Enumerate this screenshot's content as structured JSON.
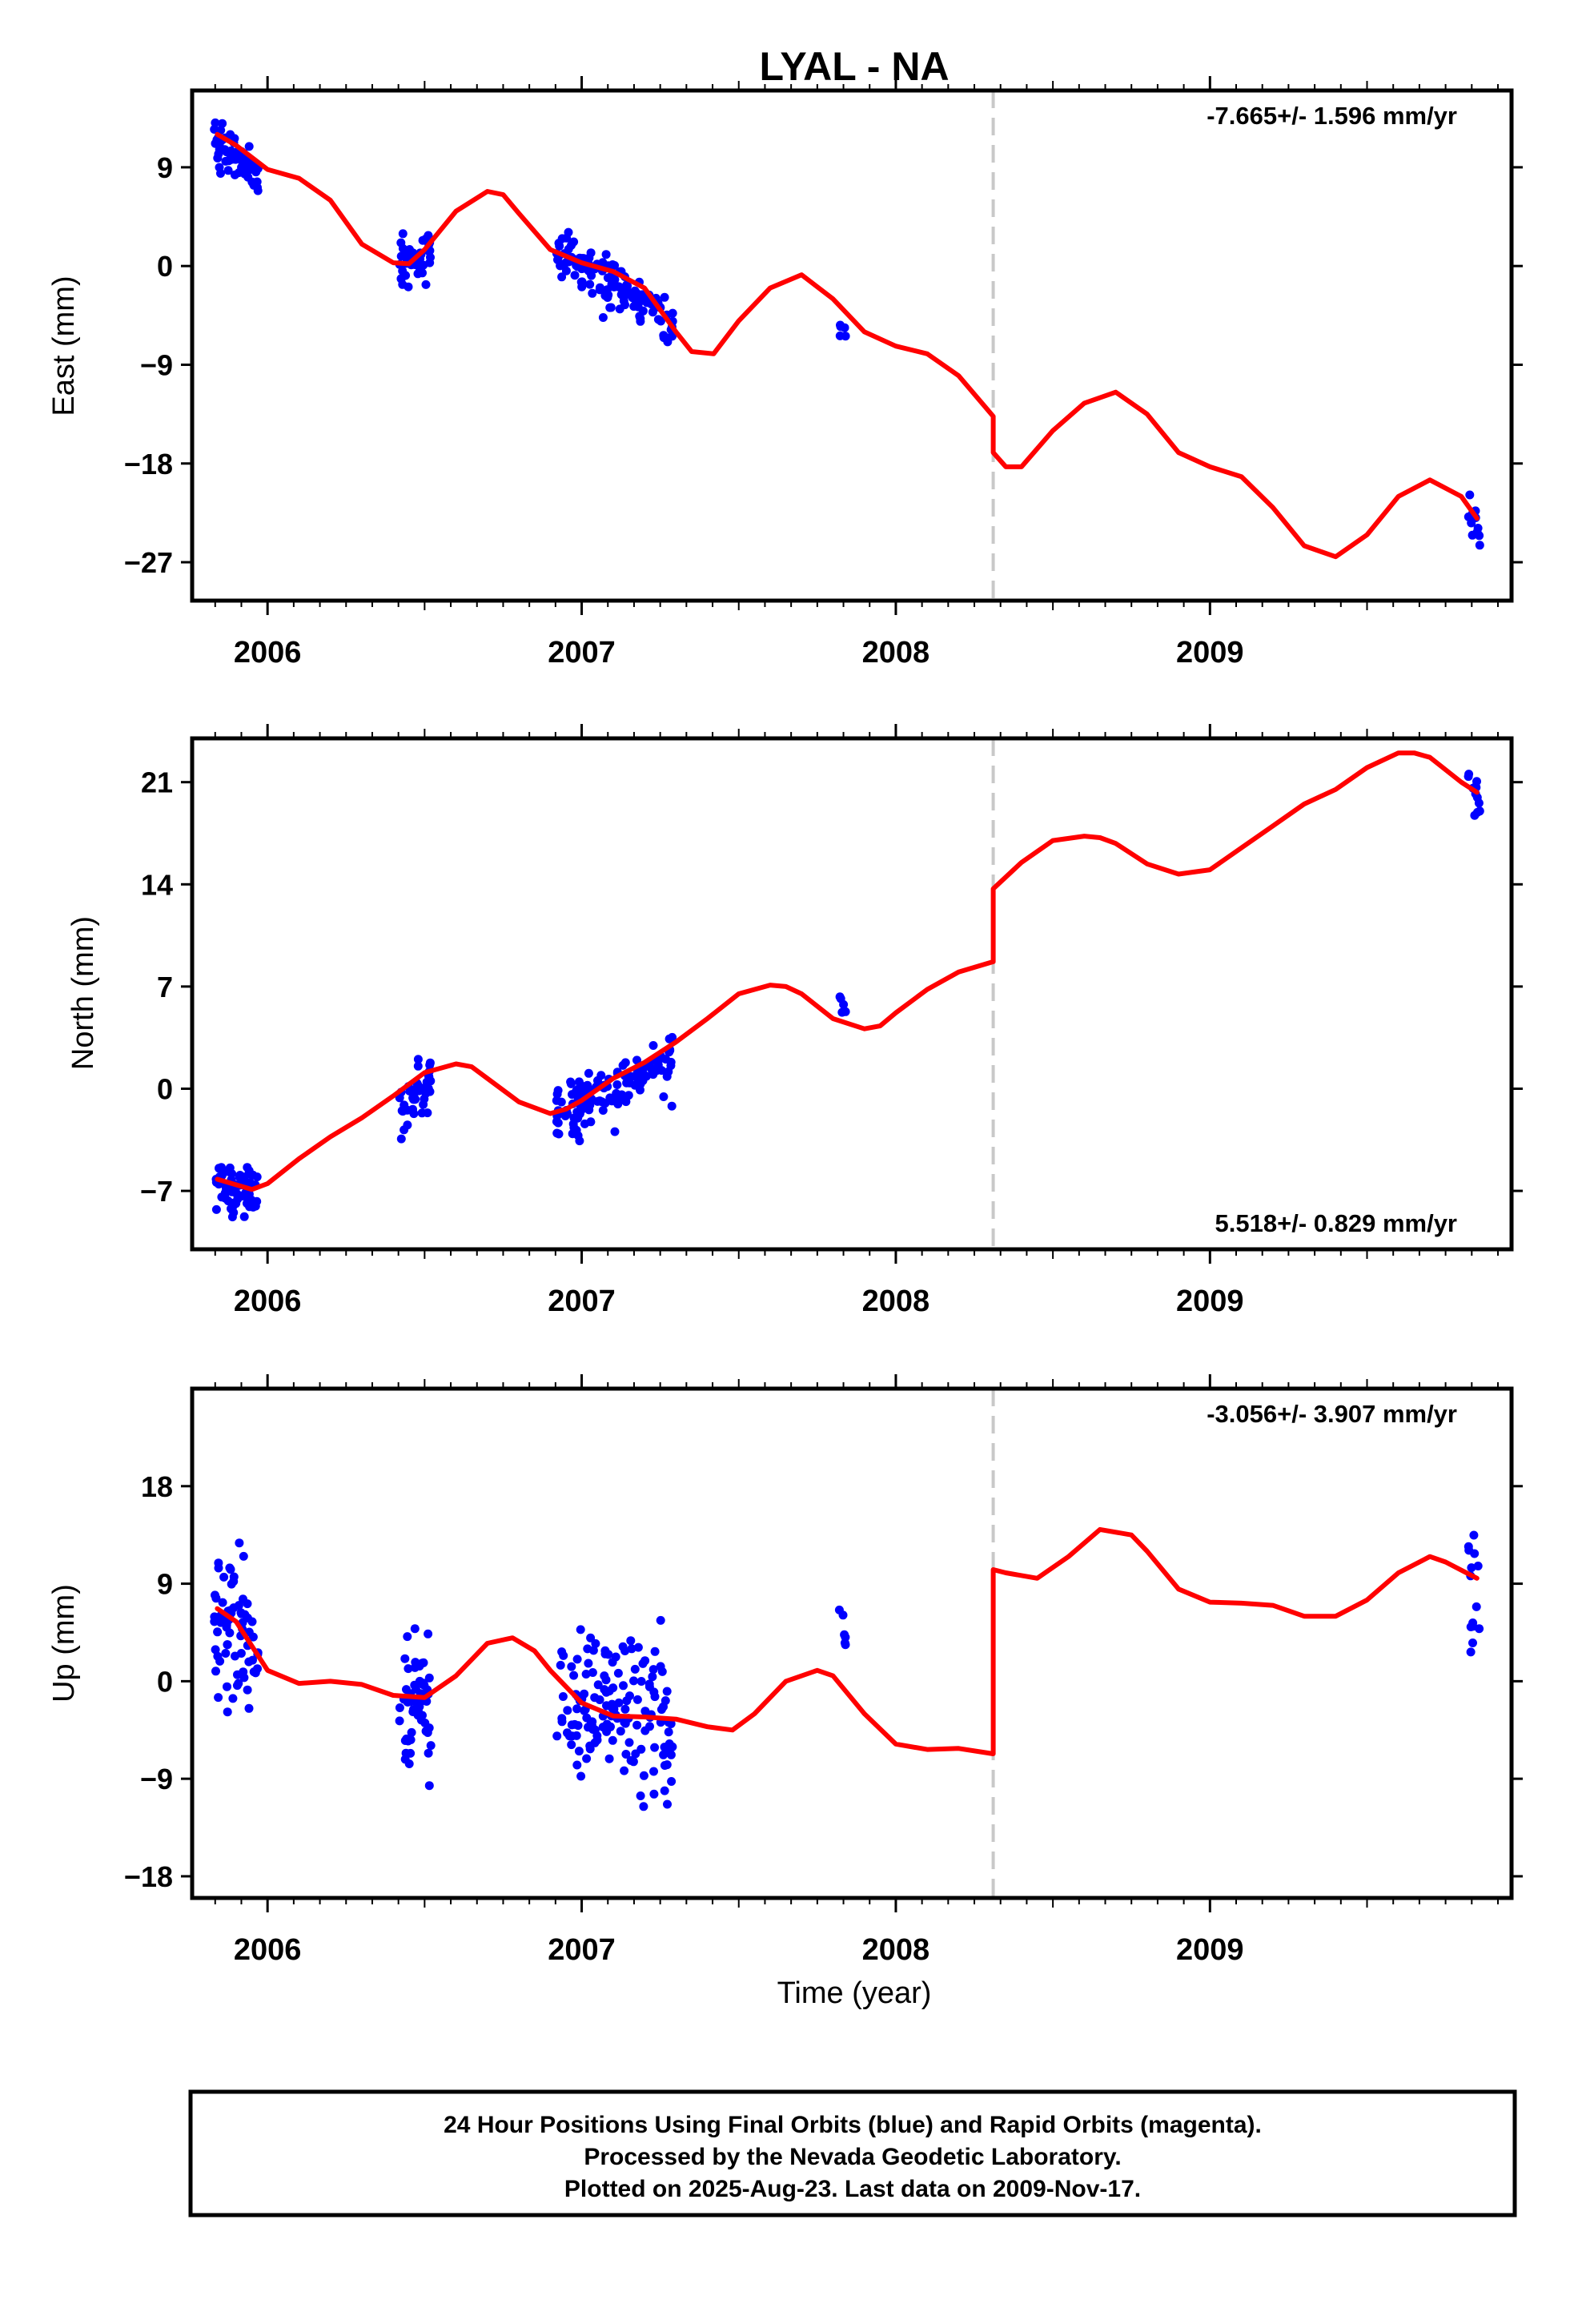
{
  "title": "LYAL - NA",
  "xlabel": "Time (year)",
  "footer": {
    "line1": "24 Hour Positions Using Final Orbits (blue) and Rapid Orbits (magenta).",
    "line2": "Processed by the Nevada Geodetic Laboratory.",
    "line3": "Plotted on 2025-Aug-23. Last data on 2009-Nov-17."
  },
  "colors": {
    "data": "#0000ff",
    "model": "#ff0000",
    "offset": "#c8c8c8",
    "frame": "#000000"
  },
  "chart_data": [
    {
      "type": "scatter",
      "ylabel": "East (mm)",
      "rate": "-7.665+/- 1.596 mm/yr",
      "rate_position": "top-right",
      "xlim": [
        2005.76,
        2009.96
      ],
      "ylim": [
        -30.5,
        16
      ],
      "yticks": [
        9,
        0,
        -9,
        -18,
        -27
      ],
      "xticks": [
        2006,
        2007,
        2008,
        2009
      ],
      "offset_line_x": 2008.31,
      "data_clusters": [
        {
          "x": [
            2005.83,
            2005.97
          ],
          "y": [
            11.5,
            8.5
          ],
          "spread": 1.6,
          "n": 70
        },
        {
          "x": [
            2006.42,
            2006.52
          ],
          "y": [
            0.0,
            1.5
          ],
          "spread": 1.3,
          "n": 45
        },
        {
          "x": [
            2006.92,
            2007.29
          ],
          "y": [
            1.5,
            -5.2
          ],
          "spread": 1.6,
          "n": 130
        },
        {
          "x": [
            2007.82,
            2007.84
          ],
          "y": [
            -5.5,
            -6.0
          ],
          "spread": 0.6,
          "n": 5
        },
        {
          "x": [
            2009.82,
            2009.86
          ],
          "y": [
            -21.5,
            -23.5
          ],
          "spread": 1.8,
          "n": 12
        }
      ],
      "model": {
        "x": [
          2005.84,
          2005.9,
          2006.0,
          2006.1,
          2006.2,
          2006.3,
          2006.4,
          2006.45,
          2006.5,
          2006.6,
          2006.7,
          2006.75,
          2006.8,
          2006.9,
          2007.0,
          2007.1,
          2007.2,
          2007.3,
          2007.35,
          2007.42,
          2007.5,
          2007.6,
          2007.7,
          2007.8,
          2007.9,
          2008.0,
          2008.1,
          2008.2,
          2008.31,
          2008.31,
          2008.35,
          2008.4,
          2008.5,
          2008.6,
          2008.7,
          2008.8,
          2008.9,
          2009.0,
          2009.1,
          2009.2,
          2009.3,
          2009.4,
          2009.5,
          2009.6,
          2009.7,
          2009.8,
          2009.85
        ],
        "y": [
          12.0,
          11.0,
          8.8,
          8.0,
          6.0,
          2.0,
          0.3,
          0.2,
          1.5,
          5.0,
          6.8,
          6.5,
          4.8,
          1.5,
          0.3,
          -0.5,
          -2.0,
          -6.0,
          -7.8,
          -8.0,
          -5.0,
          -2.0,
          -0.8,
          -3.0,
          -6.0,
          -7.3,
          -8.0,
          -10.0,
          -13.7,
          -17.0,
          -18.3,
          -18.3,
          -15.0,
          -12.5,
          -11.5,
          -13.5,
          -17.0,
          -18.3,
          -19.2,
          -22.0,
          -25.5,
          -26.5,
          -24.5,
          -21.0,
          -19.5,
          -21.0,
          -23.0
        ]
      }
    },
    {
      "type": "scatter",
      "ylabel": "North (mm)",
      "rate": "5.518+/- 0.829 mm/yr",
      "rate_position": "bottom-right",
      "xlim": [
        2005.76,
        2009.96
      ],
      "ylim": [
        -11,
        24
      ],
      "yticks": [
        21,
        14,
        7,
        0,
        -7
      ],
      "xticks": [
        2006,
        2007,
        2008,
        2009
      ],
      "offset_line_x": 2008.31,
      "data_clusters": [
        {
          "x": [
            2005.83,
            2005.97
          ],
          "y": [
            -6.3,
            -7.2
          ],
          "spread": 1.5,
          "n": 70
        },
        {
          "x": [
            2006.42,
            2006.52
          ],
          "y": [
            -1.5,
            0.5
          ],
          "spread": 1.5,
          "n": 45
        },
        {
          "x": [
            2006.92,
            2007.29
          ],
          "y": [
            -1.8,
            2.3
          ],
          "spread": 1.5,
          "n": 130
        },
        {
          "x": [
            2007.82,
            2007.84
          ],
          "y": [
            6.0,
            5.5
          ],
          "spread": 0.5,
          "n": 5
        },
        {
          "x": [
            2009.82,
            2009.86
          ],
          "y": [
            21.0,
            20.0
          ],
          "spread": 1.3,
          "n": 12
        }
      ],
      "model": {
        "x": [
          2005.84,
          2005.95,
          2006.0,
          2006.1,
          2006.2,
          2006.3,
          2006.4,
          2006.5,
          2006.6,
          2006.65,
          2006.7,
          2006.8,
          2006.9,
          2006.95,
          2007.0,
          2007.1,
          2007.2,
          2007.3,
          2007.4,
          2007.5,
          2007.6,
          2007.65,
          2007.7,
          2007.8,
          2007.9,
          2007.95,
          2008.0,
          2008.1,
          2008.2,
          2008.31,
          2008.31,
          2008.4,
          2008.5,
          2008.6,
          2008.65,
          2008.7,
          2008.8,
          2008.9,
          2009.0,
          2009.1,
          2009.2,
          2009.3,
          2009.4,
          2009.5,
          2009.6,
          2009.65,
          2009.7,
          2009.8,
          2009.85
        ],
        "y": [
          -6.2,
          -6.9,
          -6.5,
          -4.8,
          -3.3,
          -2.0,
          -0.5,
          1.1,
          1.7,
          1.5,
          0.7,
          -0.9,
          -1.7,
          -1.4,
          -0.8,
          0.7,
          1.8,
          3.2,
          4.8,
          6.5,
          7.1,
          7.0,
          6.5,
          4.8,
          4.1,
          4.3,
          5.2,
          6.8,
          8.0,
          8.7,
          13.7,
          15.5,
          17.0,
          17.3,
          17.2,
          16.8,
          15.4,
          14.7,
          15.0,
          16.5,
          18.0,
          19.5,
          20.5,
          22.0,
          23.0,
          23.0,
          22.7,
          21.0,
          20.3
        ]
      }
    },
    {
      "type": "scatter",
      "ylabel": "Up (mm)",
      "rate": "-3.056+/- 3.907 mm/yr",
      "rate_position": "top-right",
      "xlim": [
        2005.76,
        2009.96
      ],
      "ylim": [
        -20,
        27
      ],
      "yticks": [
        18,
        9,
        0,
        -9,
        -18
      ],
      "xticks": [
        2006,
        2007,
        2008,
        2009
      ],
      "offset_line_x": 2008.31,
      "data_clusters": [
        {
          "x": [
            2005.83,
            2005.97
          ],
          "y": [
            6.0,
            3.5
          ],
          "spread": 6.0,
          "n": 70
        },
        {
          "x": [
            2006.42,
            2006.52
          ],
          "y": [
            -2.0,
            -2.0
          ],
          "spread": 5.0,
          "n": 55
        },
        {
          "x": [
            2006.92,
            2007.29
          ],
          "y": [
            -1.5,
            -4.0
          ],
          "spread": 5.5,
          "n": 150
        },
        {
          "x": [
            2007.82,
            2007.84
          ],
          "y": [
            5.5,
            4.0
          ],
          "spread": 1.2,
          "n": 6
        },
        {
          "x": [
            2009.82,
            2009.86
          ],
          "y": [
            10.0,
            10.0
          ],
          "spread": 5.0,
          "n": 14
        }
      ],
      "model": {
        "x": [
          2005.84,
          2005.9,
          2006.0,
          2006.1,
          2006.2,
          2006.3,
          2006.4,
          2006.5,
          2006.6,
          2006.7,
          2006.78,
          2006.85,
          2006.9,
          2007.0,
          2007.1,
          2007.2,
          2007.3,
          2007.4,
          2007.48,
          2007.55,
          2007.65,
          2007.75,
          2007.8,
          2007.9,
          2008.0,
          2008.1,
          2008.2,
          2008.31,
          2008.31,
          2008.35,
          2008.45,
          2008.55,
          2008.65,
          2008.75,
          2008.8,
          2008.9,
          2009.0,
          2009.1,
          2009.2,
          2009.3,
          2009.4,
          2009.5,
          2009.6,
          2009.7,
          2009.75,
          2009.85
        ],
        "y": [
          6.7,
          5.5,
          1.0,
          -0.2,
          0.0,
          -0.3,
          -1.3,
          -1.5,
          0.5,
          3.5,
          4.0,
          2.8,
          1.0,
          -2.0,
          -3.2,
          -3.3,
          -3.5,
          -4.2,
          -4.5,
          -3.0,
          0.0,
          1.0,
          0.5,
          -3.0,
          -5.8,
          -6.3,
          -6.2,
          -6.7,
          10.3,
          10.0,
          9.5,
          11.5,
          14.0,
          13.5,
          12.0,
          8.5,
          7.3,
          7.2,
          7.0,
          6.0,
          6.0,
          7.5,
          10.0,
          11.5,
          11.0,
          9.5
        ]
      }
    }
  ]
}
